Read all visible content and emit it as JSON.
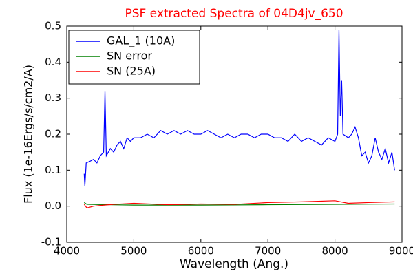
{
  "chart_data": {
    "type": "line",
    "title": "PSF extracted Spectra of 04D4jv_650",
    "title_color": "#ff0000",
    "x_label": "Wavelength (Ang.)",
    "y_label": "Flux (1e-16Ergs/s/cm2/A)",
    "xlim": [
      4000,
      9000
    ],
    "xticks": [
      4000,
      5000,
      6000,
      7000,
      8000,
      9000
    ],
    "ylim": [
      -0.1,
      0.5
    ],
    "yticks": [
      -0.1,
      {
        "value": 0,
        "label": "0.0"
      },
      0.1,
      0.2,
      0.3,
      0.4,
      0.5
    ],
    "legend": "upper left",
    "series": [
      {
        "name": "GAL_1 (10A)",
        "color": "#0000ff",
        "x": [
          4260,
          4270,
          4290,
          4350,
          4400,
          4450,
          4500,
          4550,
          4570,
          4590,
          4650,
          4700,
          4750,
          4800,
          4850,
          4900,
          4950,
          5000,
          5100,
          5200,
          5300,
          5400,
          5500,
          5600,
          5700,
          5800,
          5900,
          6000,
          6100,
          6200,
          6300,
          6400,
          6500,
          6600,
          6700,
          6800,
          6900,
          7000,
          7100,
          7200,
          7300,
          7400,
          7500,
          7600,
          7700,
          7800,
          7900,
          8000,
          8040,
          8060,
          8080,
          8100,
          8120,
          8200,
          8250,
          8300,
          8350,
          8400,
          8450,
          8500,
          8550,
          8600,
          8650,
          8700,
          8750,
          8800,
          8850,
          8890
        ],
        "values": [
          0.09,
          0.055,
          0.12,
          0.125,
          0.13,
          0.12,
          0.14,
          0.15,
          0.32,
          0.14,
          0.16,
          0.15,
          0.17,
          0.18,
          0.16,
          0.19,
          0.18,
          0.19,
          0.19,
          0.2,
          0.19,
          0.21,
          0.2,
          0.21,
          0.2,
          0.21,
          0.2,
          0.2,
          0.21,
          0.2,
          0.19,
          0.2,
          0.19,
          0.2,
          0.2,
          0.19,
          0.2,
          0.2,
          0.19,
          0.19,
          0.18,
          0.2,
          0.18,
          0.19,
          0.18,
          0.17,
          0.19,
          0.18,
          0.2,
          0.49,
          0.25,
          0.35,
          0.2,
          0.19,
          0.2,
          0.22,
          0.19,
          0.14,
          0.15,
          0.12,
          0.14,
          0.19,
          0.15,
          0.13,
          0.16,
          0.12,
          0.15,
          0.1
        ]
      },
      {
        "name": "SN error",
        "color": "#008000",
        "x": [
          4260,
          4300,
          5000,
          6000,
          7000,
          8000,
          8890
        ],
        "values": [
          0.01,
          0.005,
          0.003,
          0.003,
          0.004,
          0.005,
          0.006
        ]
      },
      {
        "name": "SN (25A)",
        "color": "#ff0000",
        "x": [
          4260,
          4300,
          4400,
          4500,
          4700,
          5000,
          5500,
          6000,
          6500,
          7000,
          7500,
          8000,
          8200,
          8500,
          8890
        ],
        "values": [
          0.005,
          -0.005,
          0,
          0.002,
          0.005,
          0.008,
          0.004,
          0.006,
          0.005,
          0.01,
          0.012,
          0.015,
          0.008,
          0.01,
          0.012
        ]
      }
    ]
  }
}
